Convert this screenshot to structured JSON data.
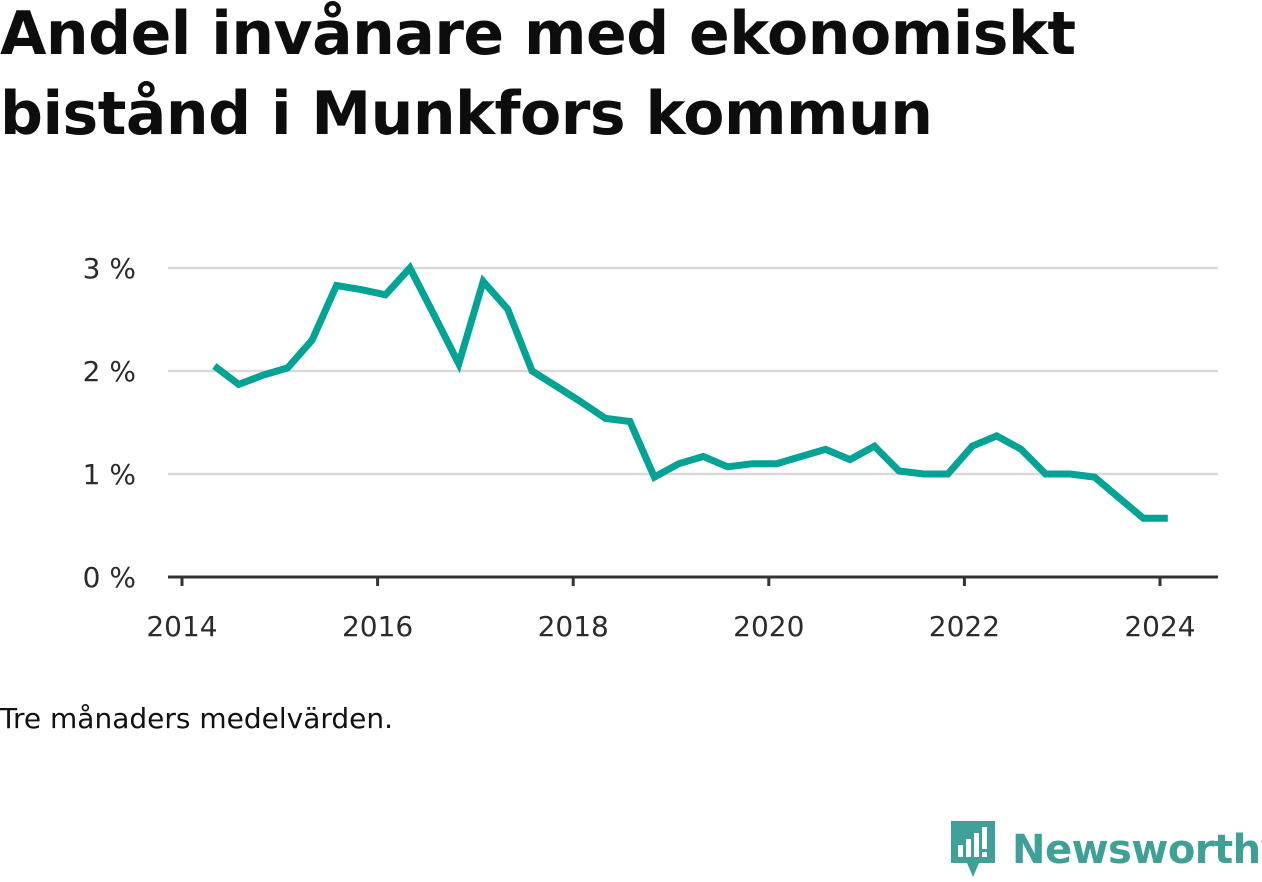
{
  "title": "Andel invånare med ekonomiskt bistånd i Munkfors kommun",
  "note": "Tre månaders medelvärden.",
  "brand": {
    "name": "Newsworthy",
    "color": "#3fa098",
    "icon": "newsworthy-logo-icon"
  },
  "colors": {
    "line": "#00a394",
    "grid": "#d9d9d9",
    "axis": "#333333"
  },
  "chart_data": {
    "type": "line",
    "title": "Andel invånare med ekonomiskt bistånd i Munkfors kommun",
    "xlabel": "",
    "ylabel": "",
    "grid": true,
    "xlim": [
      2014,
      2024.3
    ],
    "ylim": [
      0,
      3
    ],
    "x_ticks": [
      2014,
      2016,
      2018,
      2020,
      2022,
      2024
    ],
    "x_tick_labels": [
      "2014",
      "2016",
      "2018",
      "2020",
      "2022",
      "2024"
    ],
    "y_ticks": [
      0,
      1,
      2,
      3
    ],
    "y_tick_labels": [
      "0 %",
      "1 %",
      "2 %",
      "3 %"
    ],
    "series": [
      {
        "x": [
          2014.33,
          2014.58,
          2014.83,
          2015.08,
          2015.33,
          2015.58,
          2015.83,
          2016.08,
          2016.33,
          2016.58,
          2016.83,
          2017.08,
          2017.33,
          2017.58,
          2017.83,
          2018.08,
          2018.33,
          2018.58,
          2018.83,
          2019.08,
          2019.33,
          2019.58,
          2019.83,
          2020.08,
          2020.33,
          2020.58,
          2020.83,
          2021.08,
          2021.33,
          2021.58,
          2021.83,
          2022.08,
          2022.33,
          2022.58,
          2022.83,
          2023.08,
          2023.33,
          2023.58,
          2023.83,
          2024.08
        ],
        "values": [
          2.05,
          1.87,
          1.96,
          2.03,
          2.3,
          2.83,
          2.79,
          2.74,
          3.0,
          2.54,
          2.07,
          2.87,
          2.6,
          2.0,
          1.85,
          1.7,
          1.54,
          1.51,
          0.97,
          1.1,
          1.17,
          1.07,
          1.1,
          1.1,
          1.17,
          1.24,
          1.14,
          1.27,
          1.03,
          1.0,
          1.0,
          1.27,
          1.37,
          1.24,
          1.0,
          1.0,
          0.97,
          0.77,
          0.57,
          0.57
        ]
      }
    ]
  }
}
